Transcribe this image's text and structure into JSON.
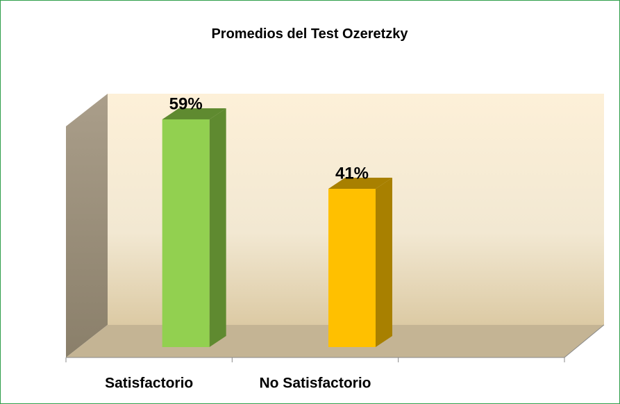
{
  "chart_data": {
    "type": "bar3d",
    "title": "Promedios del Test Ozeretzky",
    "categories": [
      "Satisfactorio",
      "No Satisfactorio",
      null
    ],
    "values": [
      59,
      41,
      null
    ],
    "value_labels": [
      "59%",
      "41%",
      null
    ],
    "colors": [
      "#92d050",
      "#ffc000",
      null
    ],
    "side_colors": [
      "#5f8a30",
      "#a88000",
      null
    ]
  }
}
